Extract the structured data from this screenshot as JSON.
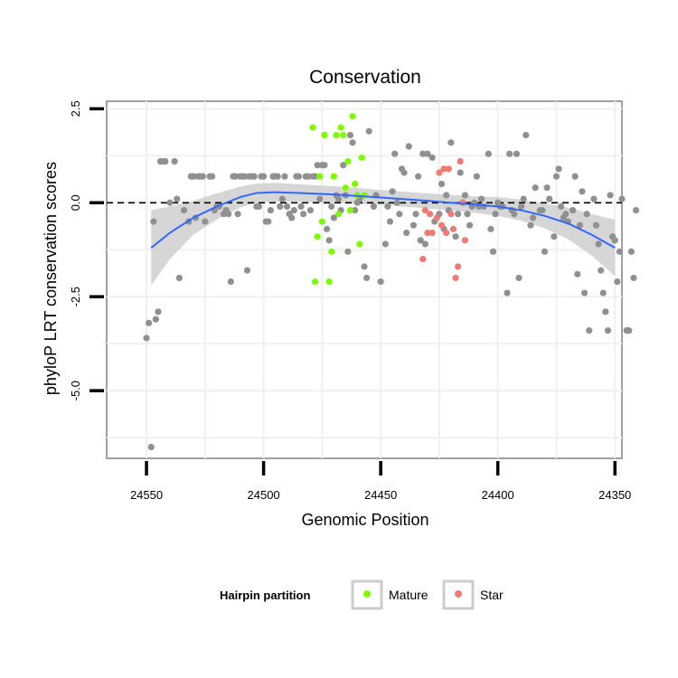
{
  "chart_data": {
    "type": "scatter",
    "title": "Conservation",
    "xlabel": "Genomic Position",
    "ylabel": "phyloP LRT conservation scores",
    "x_reversed": true,
    "xlim": [
      24567,
      24347
    ],
    "ylim": [
      -6.8,
      2.7
    ],
    "x_ticks": [
      24550,
      24500,
      24450,
      24400,
      24350
    ],
    "y_ticks": [
      2.5,
      0.0,
      -2.5,
      -5.0
    ],
    "y_tick_labels": [
      "2.5",
      "0.0",
      "-2.5",
      "-5.0"
    ],
    "reference_line": {
      "y": 0,
      "style": "dashed"
    },
    "grid": true,
    "colors": {
      "other": "#909090",
      "Mature": "#7cfc00",
      "Star": "#f07b72",
      "smooth": "#3366ff",
      "ribbon": "#cfcfcf"
    },
    "legend": {
      "title": "Hairpin partition",
      "position": "bottom",
      "entries": [
        "Mature",
        "Star"
      ]
    },
    "smooth": {
      "x": [
        24548,
        24540,
        24530,
        24520,
        24510,
        24503,
        24495,
        24485,
        24470,
        24450,
        24430,
        24410,
        24400,
        24390,
        24380,
        24370,
        24360,
        24350
      ],
      "y": [
        -1.2,
        -0.8,
        -0.4,
        -0.1,
        0.15,
        0.26,
        0.28,
        0.26,
        0.22,
        0.14,
        0.05,
        -0.05,
        -0.1,
        -0.2,
        -0.35,
        -0.55,
        -0.85,
        -1.2
      ],
      "band": [
        1.0,
        0.7,
        0.45,
        0.35,
        0.28,
        0.25,
        0.25,
        0.23,
        0.22,
        0.2,
        0.2,
        0.22,
        0.25,
        0.28,
        0.33,
        0.42,
        0.55,
        0.75
      ]
    },
    "series": [
      {
        "name": "other",
        "points": [
          [
            24550,
            -3.6
          ],
          [
            24549,
            -3.2
          ],
          [
            24548,
            -6.5
          ],
          [
            24547,
            -0.5
          ],
          [
            24546,
            -3.1
          ],
          [
            24545,
            -2.9
          ],
          [
            24544,
            1.1
          ],
          [
            24543,
            1.1
          ],
          [
            24542,
            1.1
          ],
          [
            24540,
            0.0
          ],
          [
            24538,
            1.1
          ],
          [
            24537,
            0.1
          ],
          [
            24536,
            -2.0
          ],
          [
            24534,
            -0.2
          ],
          [
            24532,
            -0.5
          ],
          [
            24531,
            0.7
          ],
          [
            24530,
            0.7
          ],
          [
            24529,
            -0.4
          ],
          [
            24528,
            0.7
          ],
          [
            24527,
            0.7
          ],
          [
            24526,
            0.7
          ],
          [
            24525,
            -0.5
          ],
          [
            24523,
            0.7
          ],
          [
            24522,
            0.7
          ],
          [
            24521,
            -0.2
          ],
          [
            24520,
            -0.1
          ],
          [
            24519,
            -0.1
          ],
          [
            24517,
            -0.3
          ],
          [
            24516,
            -0.2
          ],
          [
            24515,
            -0.3
          ],
          [
            24514,
            -2.1
          ],
          [
            24513,
            0.7
          ],
          [
            24512,
            0.7
          ],
          [
            24511,
            -0.3
          ],
          [
            24510,
            0.7
          ],
          [
            24509,
            0.7
          ],
          [
            24508,
            0.7
          ],
          [
            24507,
            -1.8
          ],
          [
            24506,
            0.7
          ],
          [
            24505,
            0.7
          ],
          [
            24504,
            0.7
          ],
          [
            24503,
            -0.1
          ],
          [
            24502,
            -0.1
          ],
          [
            24501,
            0.7
          ],
          [
            24500,
            0.7
          ],
          [
            24499,
            -0.5
          ],
          [
            24498,
            -0.5
          ],
          [
            24497,
            -0.2
          ],
          [
            24496,
            0.7
          ],
          [
            24495,
            0.7
          ],
          [
            24494,
            0.7
          ],
          [
            24493,
            -0.1
          ],
          [
            24492,
            0.1
          ],
          [
            24491,
            0.7
          ],
          [
            24490,
            -0.1
          ],
          [
            24489,
            -0.3
          ],
          [
            24488,
            -0.4
          ],
          [
            24487,
            -0.2
          ],
          [
            24486,
            0.7
          ],
          [
            24485,
            0.7
          ],
          [
            24484,
            -0.1
          ],
          [
            24483,
            -0.3
          ],
          [
            24482,
            0.7
          ],
          [
            24481,
            0.7
          ],
          [
            24480,
            -0.2
          ],
          [
            24479,
            0.7
          ],
          [
            24478,
            0.7
          ],
          [
            24477,
            1.0
          ],
          [
            24476,
            0.1
          ],
          [
            24475,
            1.0
          ],
          [
            24474,
            1.0
          ],
          [
            24473,
            -0.7
          ],
          [
            24472,
            -1.0
          ],
          [
            24471,
            -0.1
          ],
          [
            24470,
            -0.4
          ],
          [
            24469,
            0.2
          ],
          [
            24468,
            0.1
          ],
          [
            24467,
            -0.2
          ],
          [
            24466,
            1.0
          ],
          [
            24465,
            0.2
          ],
          [
            24464,
            -1.3
          ],
          [
            24463,
            1.8
          ],
          [
            24462,
            1.6
          ],
          [
            24461,
            -0.2
          ],
          [
            24460,
            0.0
          ],
          [
            24459,
            0.1
          ],
          [
            24457,
            -1.7
          ],
          [
            24456,
            -2.0
          ],
          [
            24455,
            1.9
          ],
          [
            24453,
            -0.1
          ],
          [
            24452,
            0.2
          ],
          [
            24450,
            -2.1
          ],
          [
            24448,
            -1.1
          ],
          [
            24447,
            -0.1
          ],
          [
            24446,
            -0.5
          ],
          [
            24445,
            0.3
          ],
          [
            24444,
            1.3
          ],
          [
            24443,
            0.0
          ],
          [
            24442,
            -0.3
          ],
          [
            24441,
            0.9
          ],
          [
            24440,
            0.8
          ],
          [
            24439,
            -0.8
          ],
          [
            24438,
            1.5
          ],
          [
            24436,
            -0.6
          ],
          [
            24435,
            -0.3
          ],
          [
            24434,
            0.7
          ],
          [
            24433,
            -1.0
          ],
          [
            24432,
            1.3
          ],
          [
            24431,
            -1.1
          ],
          [
            24430,
            1.3
          ],
          [
            24428,
            1.2
          ],
          [
            24427,
            -0.5
          ],
          [
            24425,
            -0.3
          ],
          [
            24424,
            0.5
          ],
          [
            24423,
            -0.7
          ],
          [
            24422,
            0.2
          ],
          [
            24421,
            -0.2
          ],
          [
            24420,
            1.6
          ],
          [
            24418,
            -0.9
          ],
          [
            24417,
            -0.3
          ],
          [
            24416,
            0.8
          ],
          [
            24415,
            0.0
          ],
          [
            24414,
            0.2
          ],
          [
            24413,
            -0.3
          ],
          [
            24412,
            -0.6
          ],
          [
            24411,
            -0.1
          ],
          [
            24410,
            0.0
          ],
          [
            24409,
            0.7
          ],
          [
            24408,
            -0.1
          ],
          [
            24407,
            0.1
          ],
          [
            24406,
            -0.1
          ],
          [
            24404,
            1.3
          ],
          [
            24403,
            -0.7
          ],
          [
            24402,
            -1.3
          ],
          [
            24401,
            -0.3
          ],
          [
            24400,
            0.0
          ],
          [
            24399,
            -0.1
          ],
          [
            24398,
            -0.1
          ],
          [
            24396,
            -2.4
          ],
          [
            24395,
            1.3
          ],
          [
            24394,
            -0.2
          ],
          [
            24393,
            -0.3
          ],
          [
            24392,
            1.3
          ],
          [
            24391,
            -2.0
          ],
          [
            24390,
            -0.1
          ],
          [
            24389,
            0.1
          ],
          [
            24388,
            1.8
          ],
          [
            24386,
            -0.6
          ],
          [
            24385,
            -0.4
          ],
          [
            24384,
            0.4
          ],
          [
            24382,
            -0.2
          ],
          [
            24381,
            -0.2
          ],
          [
            24380,
            -1.3
          ],
          [
            24379,
            0.4
          ],
          [
            24378,
            0.1
          ],
          [
            24376,
            -0.9
          ],
          [
            24375,
            0.7
          ],
          [
            24374,
            0.9
          ],
          [
            24373,
            -0.1
          ],
          [
            24372,
            -0.4
          ],
          [
            24371,
            -0.3
          ],
          [
            24370,
            -0.5
          ],
          [
            24368,
            -0.2
          ],
          [
            24367,
            0.7
          ],
          [
            24366,
            -1.9
          ],
          [
            24365,
            -0.6
          ],
          [
            24364,
            0.3
          ],
          [
            24363,
            -2.4
          ],
          [
            24362,
            -0.3
          ],
          [
            24361,
            -3.4
          ],
          [
            24359,
            0.1
          ],
          [
            24358,
            -0.6
          ],
          [
            24357,
            -1.1
          ],
          [
            24356,
            -1.8
          ],
          [
            24355,
            -2.4
          ],
          [
            24354,
            -2.9
          ],
          [
            24353,
            -3.4
          ],
          [
            24352,
            0.2
          ],
          [
            24351,
            -0.9
          ],
          [
            24350,
            -1.0
          ],
          [
            24349,
            -2.1
          ],
          [
            24348,
            -1.3
          ],
          [
            24347,
            0.1
          ],
          [
            24345,
            -3.4
          ],
          [
            24344,
            -3.4
          ],
          [
            24343,
            -1.3
          ],
          [
            24342,
            -2.0
          ],
          [
            24341,
            -0.2
          ]
        ]
      },
      {
        "name": "Mature",
        "points": [
          [
            24479,
            2.0
          ],
          [
            24478,
            -2.1
          ],
          [
            24477,
            -0.9
          ],
          [
            24476,
            0.7
          ],
          [
            24475,
            -0.5
          ],
          [
            24474,
            1.8
          ],
          [
            24472,
            -2.1
          ],
          [
            24471,
            -1.3
          ],
          [
            24470,
            0.7
          ],
          [
            24469,
            1.8
          ],
          [
            24468,
            -0.3
          ],
          [
            24467,
            2.0
          ],
          [
            24466,
            1.8
          ],
          [
            24465,
            0.4
          ],
          [
            24464,
            1.1
          ],
          [
            24463,
            -0.2
          ],
          [
            24462,
            2.3
          ],
          [
            24461,
            0.5
          ],
          [
            24460,
            0.2
          ],
          [
            24459,
            -1.1
          ],
          [
            24458,
            1.2
          ],
          [
            24457,
            0.2
          ]
        ]
      },
      {
        "name": "Star",
        "points": [
          [
            24432,
            -1.5
          ],
          [
            24431,
            -0.2
          ],
          [
            24430,
            -0.8
          ],
          [
            24429,
            -0.3
          ],
          [
            24428,
            -0.8
          ],
          [
            24426,
            -0.4
          ],
          [
            24425,
            0.8
          ],
          [
            24424,
            -0.6
          ],
          [
            24423,
            0.9
          ],
          [
            24422,
            -0.8
          ],
          [
            24421,
            0.9
          ],
          [
            24420,
            -0.3
          ],
          [
            24419,
            -0.7
          ],
          [
            24418,
            -2.0
          ],
          [
            24417,
            -1.7
          ],
          [
            24416,
            1.1
          ],
          [
            24415,
            0.0
          ],
          [
            24414,
            -1.0
          ]
        ]
      }
    ]
  }
}
